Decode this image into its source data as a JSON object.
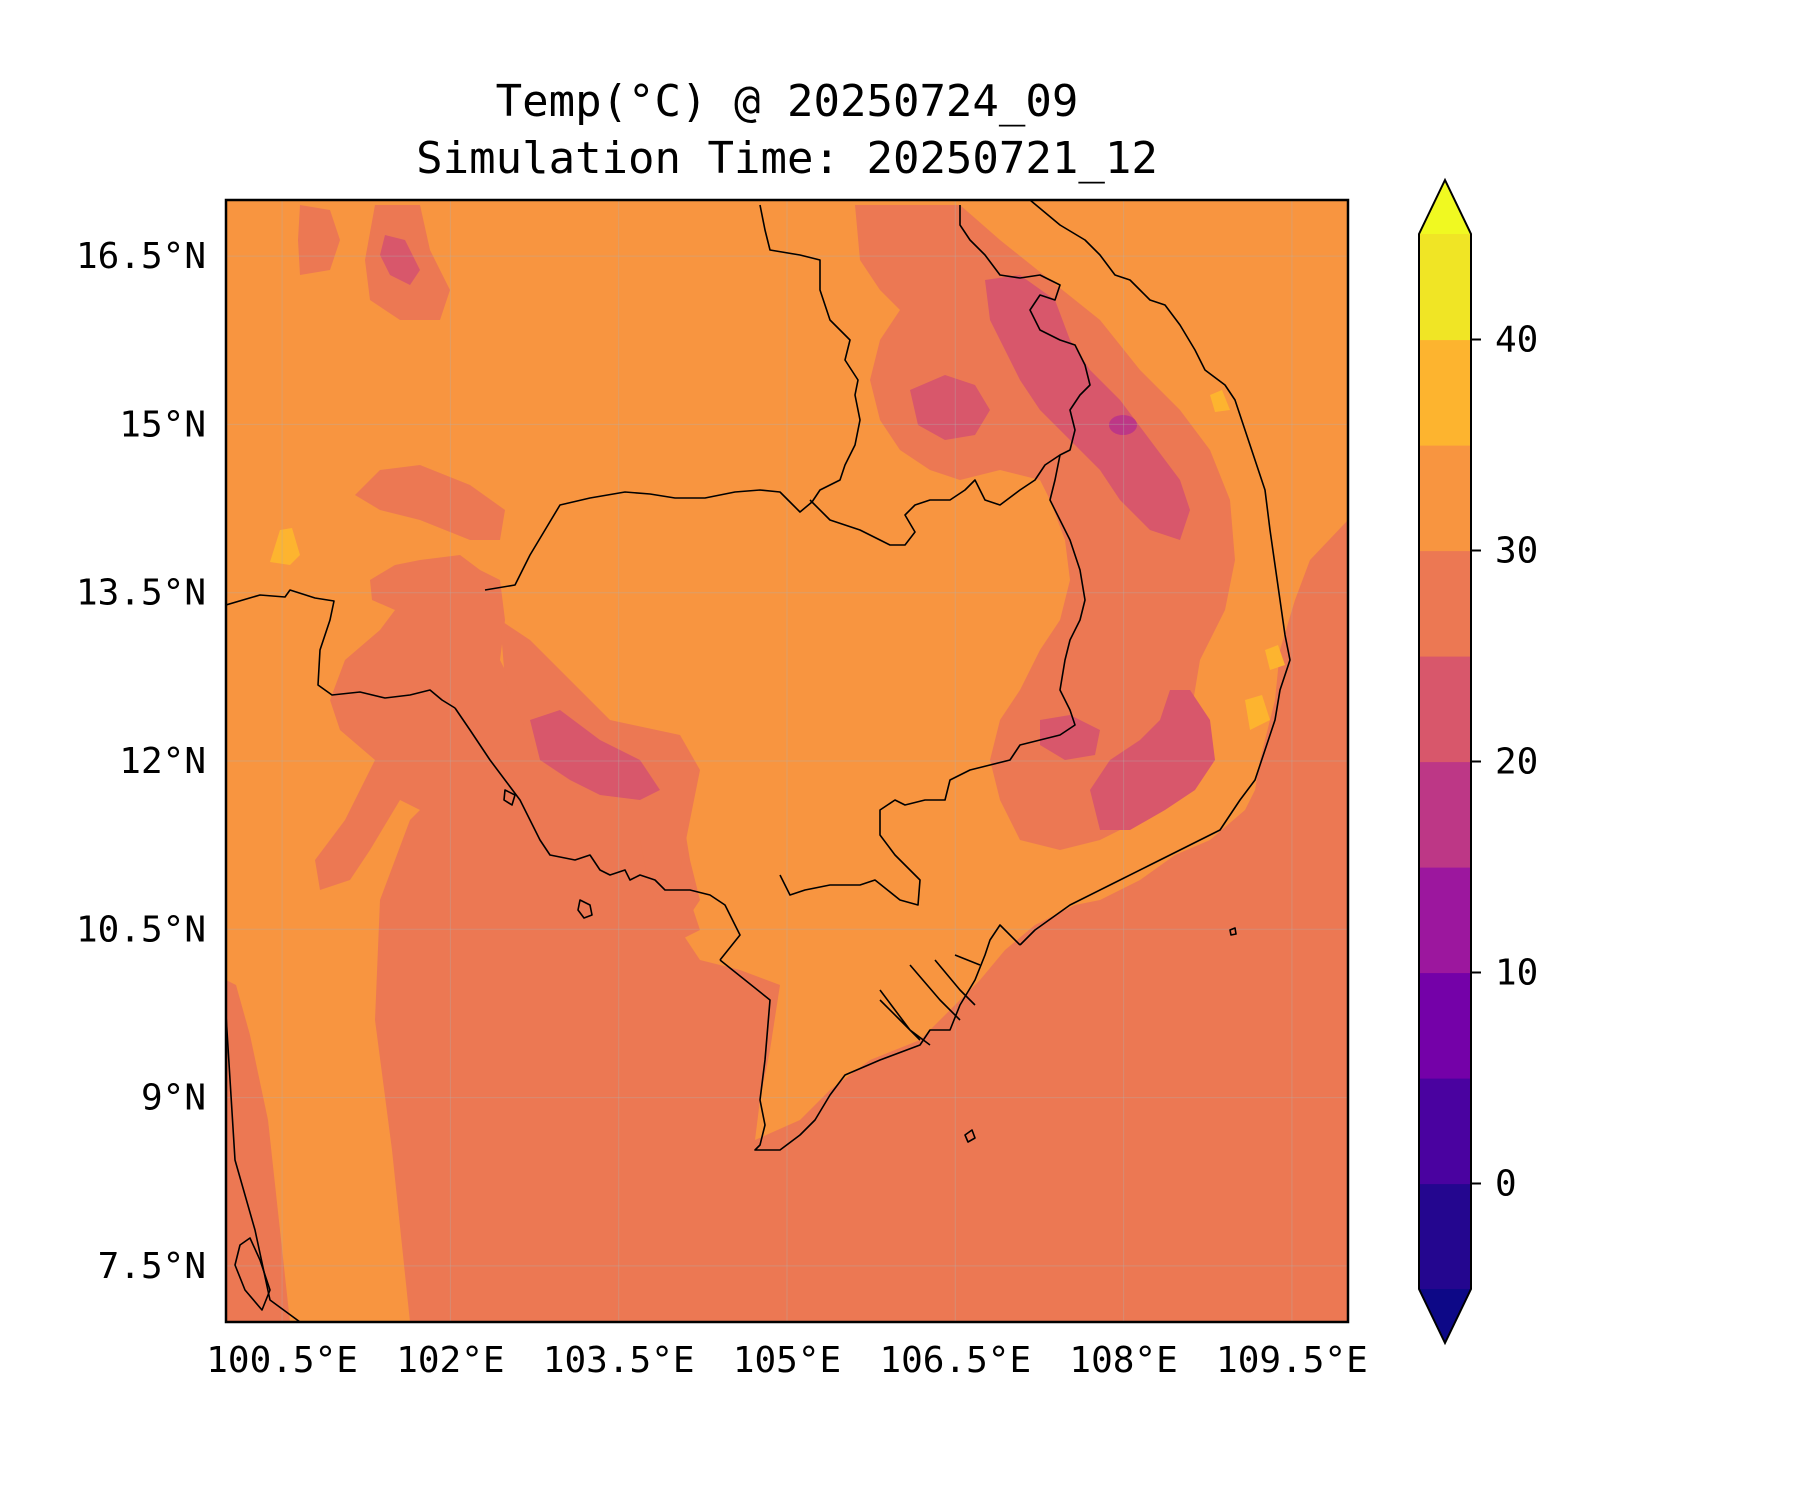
{
  "title": {
    "line1": "Temp(°C) @ 20250724_09",
    "line2": "Simulation Time: 20250721_12"
  },
  "map": {
    "lon_range": [
      100.0,
      110.0
    ],
    "lat_range": [
      7.0,
      17.0
    ],
    "x_ticks": [
      {
        "value": 100.5,
        "label": "100.5°E"
      },
      {
        "value": 102.0,
        "label": "102°E"
      },
      {
        "value": 103.5,
        "label": "103.5°E"
      },
      {
        "value": 105.0,
        "label": "105°E"
      },
      {
        "value": 106.5,
        "label": "106.5°E"
      },
      {
        "value": 108.0,
        "label": "108°E"
      },
      {
        "value": 109.5,
        "label": "109.5°E"
      }
    ],
    "y_ticks": [
      {
        "value": 16.5,
        "label": "16.5°N"
      },
      {
        "value": 15.0,
        "label": "15°N"
      },
      {
        "value": 13.5,
        "label": "13.5°N"
      },
      {
        "value": 12.0,
        "label": "12°N"
      },
      {
        "value": 10.5,
        "label": "10.5°N"
      },
      {
        "value": 9.0,
        "label": "9°N"
      },
      {
        "value": 7.5,
        "label": "7.5°N"
      }
    ],
    "grid": true
  },
  "colorbar": {
    "min": -5,
    "max": 45,
    "step": 5,
    "extend": "both",
    "colors": [
      "#24068f",
      "#4a02a0",
      "#7401a8",
      "#9c179e",
      "#bd3786",
      "#d8576b",
      "#ec7853",
      "#f89540",
      "#fdb42f",
      "#f0e525"
    ],
    "under_color": "#0d0887",
    "over_color": "#f0f921",
    "ticks": [
      {
        "value": 0,
        "label": "0"
      },
      {
        "value": 10,
        "label": "10"
      },
      {
        "value": 20,
        "label": "20"
      },
      {
        "value": 30,
        "label": "30"
      },
      {
        "value": 40,
        "label": "40"
      }
    ]
  }
}
